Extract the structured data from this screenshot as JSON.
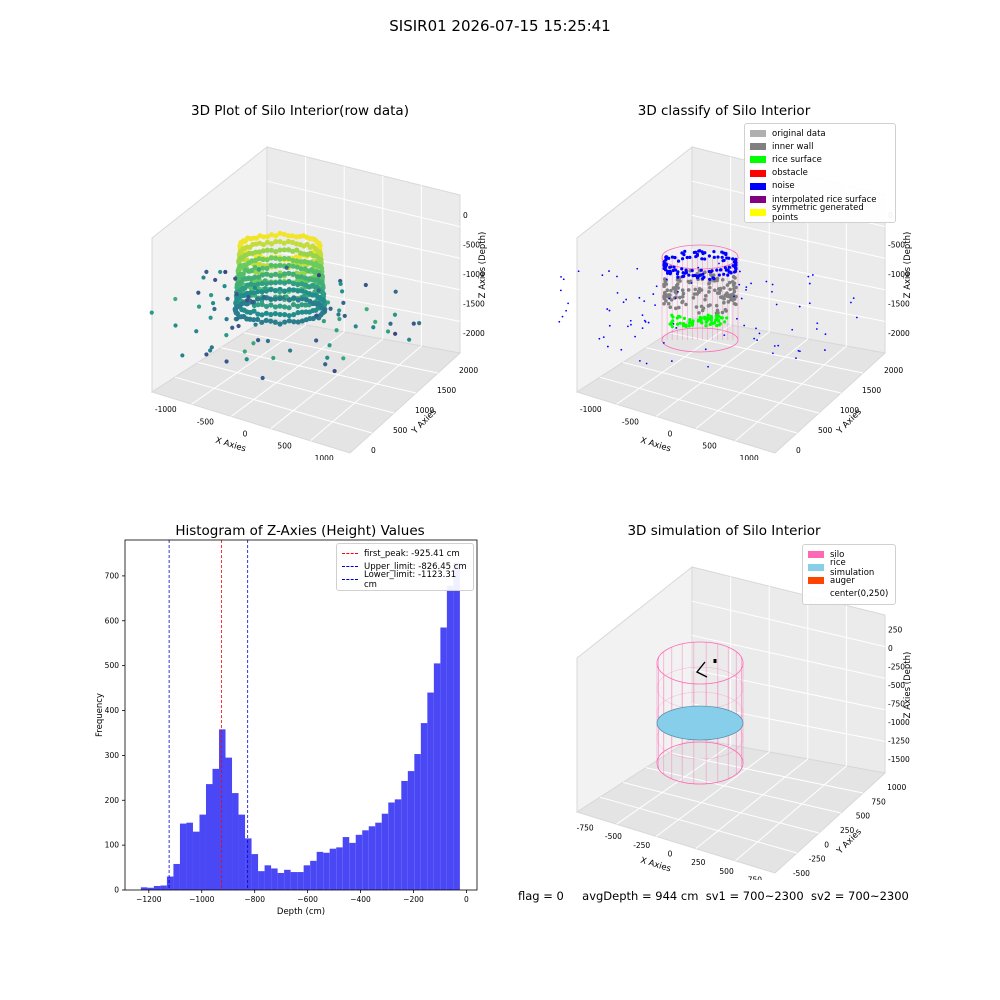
{
  "suptitle": "SISIR01 2026-07-15 15:25:41",
  "status": {
    "flag": "flag = 0",
    "avg": "avgDepth = 944 cm",
    "sv1": "sv1 = 700~2300",
    "sv2": "sv2 = 700~2300"
  },
  "colors": {
    "hist_bar": "#4a48f5",
    "first_peak": "#ff0000",
    "limits": "#0000cc",
    "silo": "#ff69b4",
    "rice_sim": "#87ceeb",
    "auger": "#ff4500",
    "inner_wall": "#808080",
    "rice_surface": "#00ff00",
    "noise": "#0000ff"
  },
  "chart_data": [
    {
      "type": "scatter",
      "projection": "3d",
      "title": "3D Plot of Silo Interior(row data)",
      "xlabel": "X Axies",
      "ylabel": "Y Axies",
      "zlabel": "Z Axies (Depth)",
      "xticks": [
        "-1000",
        "-500",
        "0",
        "500",
        "1000"
      ],
      "yticks": [
        "0",
        "500",
        "1000",
        "1500",
        "2000"
      ],
      "zticks": [
        "0",
        "-500",
        "-1000",
        "-1500",
        "-2000"
      ],
      "colormap": "viridis"
    },
    {
      "type": "scatter",
      "projection": "3d",
      "title": "3D classify of Silo Interior",
      "xlabel": "X Axies",
      "ylabel": "Y Axies",
      "zlabel": "Z Axies (Depth)",
      "xticks": [
        "-1000",
        "-500",
        "0",
        "500",
        "1000"
      ],
      "yticks": [
        "0",
        "500",
        "1000",
        "1500",
        "2000"
      ],
      "zticks": [
        "0",
        "-500",
        "-1000",
        "-1500",
        "-2000"
      ],
      "legend_position": "top-right",
      "legend": [
        {
          "label": "original data",
          "color": "#b0b0b0"
        },
        {
          "label": "inner wall",
          "color": "#808080"
        },
        {
          "label": "rice surface",
          "color": "#00ff00"
        },
        {
          "label": "obstacle",
          "color": "#ff0000"
        },
        {
          "label": "noise",
          "color": "#0000ff"
        },
        {
          "label": "interpolated rice surface",
          "color": "#800080"
        },
        {
          "label": "symmetric generated points",
          "color": "#ffff00"
        }
      ]
    },
    {
      "type": "bar",
      "title": "Histogram of Z-Axies (Height) Values",
      "xlabel": "Depth (cm)",
      "ylabel": "Frequency",
      "xlim": [
        -1290,
        40
      ],
      "ylim": [
        0,
        780
      ],
      "xticks": [
        -1200,
        -1000,
        -800,
        -600,
        -400,
        -200,
        0
      ],
      "yticks": [
        0,
        100,
        200,
        300,
        400,
        500,
        600,
        700
      ],
      "bin_start": -1230,
      "bin_width": 24.6,
      "values": [
        6,
        5,
        9,
        10,
        30,
        58,
        148,
        150,
        130,
        168,
        236,
        270,
        358,
        295,
        216,
        168,
        115,
        80,
        42,
        55,
        48,
        38,
        45,
        40,
        40,
        55,
        65,
        85,
        83,
        92,
        95,
        118,
        105,
        123,
        133,
        142,
        150,
        170,
        195,
        202,
        243,
        265,
        303,
        372,
        440,
        505,
        585,
        678,
        730
      ],
      "vlines": [
        {
          "label": "first_peak: -925.41 cm",
          "x": -925.41,
          "color": "#ff0000"
        },
        {
          "label": "Upper_limit: -826.45 cm",
          "x": -826.45,
          "color": "#0000cc"
        },
        {
          "label": "Lower_limit: -1123.31 cm",
          "x": -1123.31,
          "color": "#0000cc"
        }
      ],
      "legend_position": "top-right"
    },
    {
      "type": "scatter",
      "projection": "3d",
      "title": "3D simulation of Silo Interior",
      "xlabel": "X Axies",
      "ylabel": "Y Axies",
      "zlabel": "Z Axies (Depth)",
      "xticks": [
        "-750",
        "-500",
        "-250",
        "0",
        "250",
        "500",
        "750"
      ],
      "yticks": [
        "-500",
        "-250",
        "0",
        "250",
        "500",
        "750",
        "1000"
      ],
      "zticks": [
        "250",
        "0",
        "-250",
        "-500",
        "-750",
        "-1000",
        "-1250",
        "-1500"
      ],
      "legend_position": "top-right",
      "legend": [
        {
          "label": "silo",
          "color": "#ff69b4"
        },
        {
          "label": "rice simulation",
          "color": "#87ceeb"
        },
        {
          "label": "auger",
          "color": "#ff4500"
        },
        {
          "label": "center(0,250)",
          "color": ""
        }
      ]
    }
  ]
}
